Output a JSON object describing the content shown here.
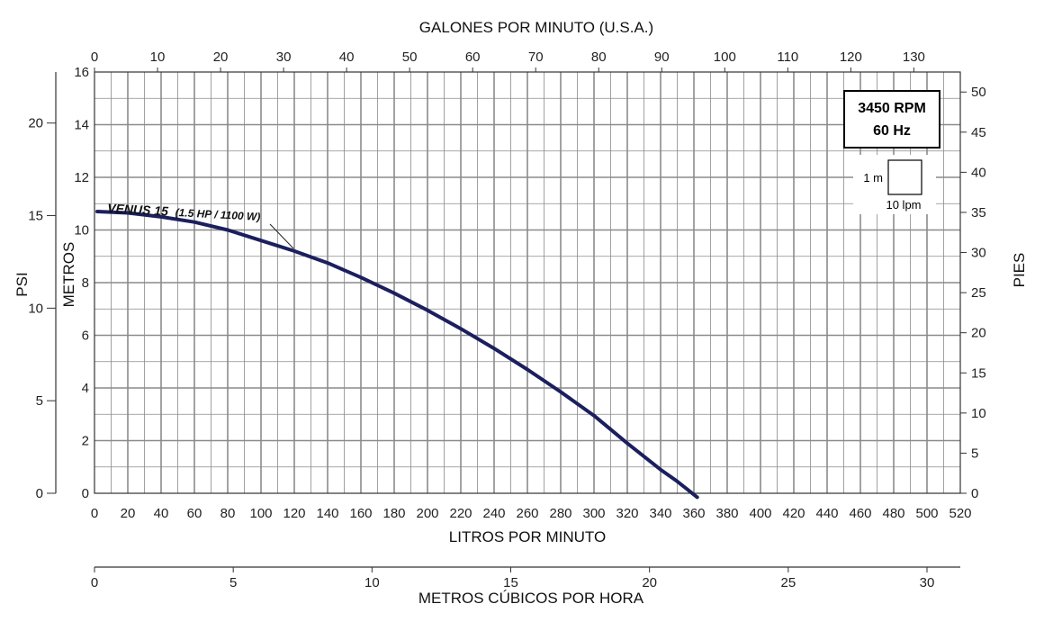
{
  "chart_data": {
    "type": "line",
    "title": "",
    "top_axis": {
      "label": "GALONES POR MINUTO (U.S.A.)",
      "ticks": [
        0,
        10,
        20,
        30,
        40,
        50,
        60,
        70,
        80,
        90,
        100,
        110,
        120,
        130
      ]
    },
    "bottom_axis": {
      "label": "LITROS POR MINUTO",
      "range": [
        0,
        520
      ],
      "ticks": [
        0,
        20,
        40,
        60,
        80,
        100,
        120,
        140,
        160,
        180,
        200,
        220,
        240,
        260,
        280,
        300,
        320,
        340,
        360,
        380,
        400,
        420,
        440,
        460,
        480,
        500,
        520
      ]
    },
    "m3h_axis": {
      "label": "METROS CÚBICOS POR HORA",
      "ticks": [
        0,
        5,
        10,
        15,
        20,
        25,
        30
      ]
    },
    "left_axis_m": {
      "label": "METROS",
      "range": [
        0,
        16
      ],
      "ticks": [
        0,
        2,
        4,
        6,
        8,
        10,
        12,
        14,
        16
      ]
    },
    "left_axis_psi": {
      "label": "PSI",
      "ticks": [
        0,
        5,
        10,
        15,
        20
      ]
    },
    "right_axis_ft": {
      "label": "PIES",
      "ticks": [
        0,
        5,
        10,
        15,
        20,
        25,
        30,
        35,
        40,
        45,
        50
      ]
    },
    "grid": true,
    "legend_box": {
      "rpm": "3450 RPM",
      "hz": "60 Hz",
      "scale_height": "1 m",
      "scale_width": "10 lpm"
    },
    "series": [
      {
        "name": "VENUS 15",
        "detail": "(1.5 HP / 1100 W)",
        "x_lpm": [
          0,
          20,
          40,
          60,
          80,
          100,
          120,
          140,
          160,
          180,
          200,
          220,
          240,
          260,
          280,
          300,
          320,
          340,
          350,
          362
        ],
        "y_m": [
          10.7,
          10.65,
          10.5,
          10.3,
          10.0,
          9.6,
          9.2,
          8.75,
          8.2,
          7.6,
          6.95,
          6.25,
          5.5,
          4.7,
          3.85,
          2.95,
          1.9,
          0.9,
          0.45,
          -0.15
        ]
      }
    ],
    "colors": {
      "curve": "#1c1f5e",
      "grid": "#8a8a8a"
    }
  }
}
